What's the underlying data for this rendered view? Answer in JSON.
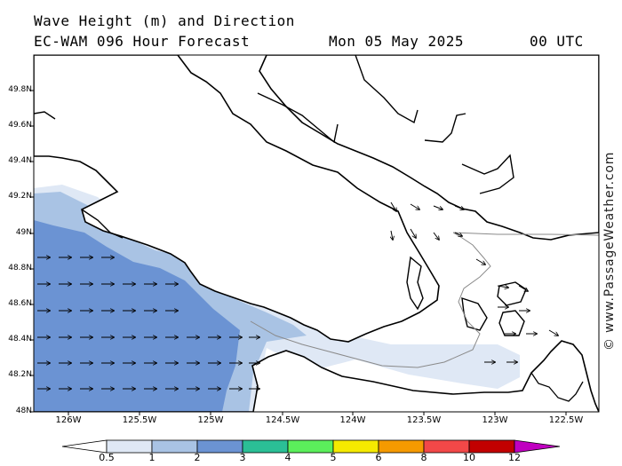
{
  "header": {
    "line1": "Wave Height (m) and Direction",
    "line2": "EC-WAM 096 Hour Forecast",
    "date": "Mon 05 May 2025",
    "time": "00 UTC"
  },
  "credit": "© www.PassageWeather.com",
  "map": {
    "lat_ticks": [
      "49.8N",
      "49.6N",
      "49.4N",
      "49.2N",
      "49N",
      "48.8N",
      "48.6N",
      "48.4N",
      "48.2N",
      "48N"
    ],
    "lon_ticks": [
      "126W",
      "125.5W",
      "125W",
      "124.5W",
      "124W",
      "123.5W",
      "123W",
      "122.5W"
    ],
    "lat_range": [
      48.0,
      50.0
    ],
    "lon_range": [
      -126.2,
      -122.4
    ],
    "zones": [
      {
        "level": "0.5-1 m",
        "color": "#dfe8f5"
      },
      {
        "level": "1-2 m",
        "color": "#a9c3e4"
      },
      {
        "level": "2-3 m",
        "color": "#6b93d3"
      }
    ],
    "arrow_direction": "east",
    "arrow_color": "#000000",
    "land_color": "#ffffff",
    "coast_color": "#000000"
  },
  "colorbar": {
    "labels": [
      "0.5",
      "1",
      "2",
      "3",
      "4",
      "5",
      "6",
      "8",
      "10",
      "12"
    ],
    "colors": [
      "#dfe8f5",
      "#a9c3e4",
      "#6b93d3",
      "#2bbf96",
      "#5bef5b",
      "#f5ea00",
      "#f59a00",
      "#f24848",
      "#c20000",
      "#c000c0"
    ]
  }
}
